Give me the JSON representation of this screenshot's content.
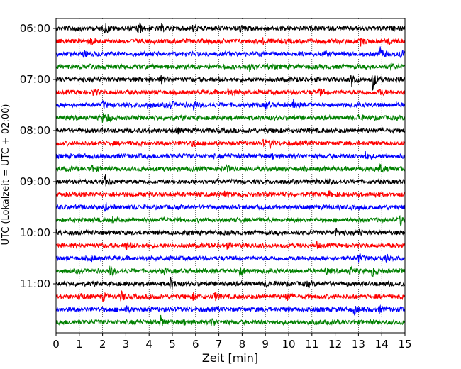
{
  "chart_data": {
    "type": "line",
    "title": "",
    "xlabel": "Zeit  [min]",
    "ylabel": "UTC (Lokalzeit = UTC + 02:00)",
    "xlim": [
      0,
      15
    ],
    "x_ticks": [
      "0",
      "1",
      "2",
      "3",
      "4",
      "5",
      "6",
      "7",
      "8",
      "9",
      "10",
      "11",
      "12",
      "13",
      "14",
      "15"
    ],
    "y_ticks": [
      "06:00",
      "07:00",
      "08:00",
      "09:00",
      "10:00",
      "11:00"
    ],
    "grid": "vertical dotted",
    "colors": [
      "#000000",
      "#ff0000",
      "#0000ff",
      "#008000"
    ],
    "traces": [
      {
        "start": "06:00",
        "color": "#000000",
        "events": [
          [
            0.8,
            0.5
          ],
          [
            2.1,
            0.9
          ],
          [
            3.5,
            1.4
          ],
          [
            4.5,
            0.5
          ],
          [
            5.9,
            0.6
          ],
          [
            7.9,
            0.5
          ]
        ]
      },
      {
        "start": "06:15",
        "color": "#ff0000",
        "events": [
          [
            1.5,
            0.5
          ],
          [
            8.9,
            0.4
          ],
          [
            13.1,
            0.5
          ],
          [
            14.3,
            0.4
          ]
        ]
      },
      {
        "start": "06:30",
        "color": "#0000ff",
        "events": [
          [
            1.2,
            0.4
          ],
          [
            11.5,
            0.4
          ],
          [
            13.9,
            1.3
          ],
          [
            14.8,
            0.6
          ]
        ]
      },
      {
        "start": "06:45",
        "color": "#008000",
        "events": [
          [
            1.5,
            0.5
          ],
          [
            8.3,
            0.6
          ],
          [
            9.0,
            0.4
          ],
          [
            14.4,
            0.4
          ]
        ]
      },
      {
        "start": "07:00",
        "color": "#000000",
        "events": [
          [
            4.5,
            0.6
          ],
          [
            12.7,
            1.0
          ],
          [
            13.6,
            1.6
          ],
          [
            14.7,
            0.5
          ]
        ]
      },
      {
        "start": "07:15",
        "color": "#ff0000",
        "events": [
          [
            1.6,
            0.6
          ],
          [
            7.4,
            0.6
          ],
          [
            11.3,
            0.5
          ],
          [
            13.9,
            0.5
          ]
        ]
      },
      {
        "start": "07:30",
        "color": "#0000ff",
        "events": [
          [
            2.0,
            0.5
          ],
          [
            3.9,
            0.5
          ],
          [
            4.9,
            0.6
          ],
          [
            5.9,
            0.6
          ],
          [
            9.0,
            0.5
          ],
          [
            10.2,
            0.5
          ]
        ]
      },
      {
        "start": "07:45",
        "color": "#008000",
        "events": [
          [
            2.0,
            0.6
          ],
          [
            2.2,
            0.5
          ],
          [
            13.0,
            0.4
          ]
        ]
      },
      {
        "start": "08:00",
        "color": "#000000",
        "events": [
          [
            5.2,
            0.4
          ],
          [
            9.4,
            0.3
          ]
        ]
      },
      {
        "start": "08:15",
        "color": "#ff0000",
        "events": [
          [
            5.9,
            0.5
          ],
          [
            8.9,
            0.4
          ],
          [
            9.2,
            0.6
          ]
        ]
      },
      {
        "start": "08:30",
        "color": "#0000ff",
        "events": [
          [
            9.3,
            0.4
          ],
          [
            13.3,
            0.5
          ]
        ]
      },
      {
        "start": "08:45",
        "color": "#008000",
        "events": [
          [
            1.5,
            0.6
          ],
          [
            7.3,
            0.5
          ],
          [
            13.9,
            0.8
          ]
        ]
      },
      {
        "start": "09:00",
        "color": "#000000",
        "events": [
          [
            2.1,
            1.0
          ],
          [
            11.6,
            0.4
          ]
        ]
      },
      {
        "start": "09:15",
        "color": "#ff0000",
        "events": [
          [
            7.2,
            0.4
          ],
          [
            11.7,
            0.4
          ],
          [
            13.7,
            0.4
          ]
        ]
      },
      {
        "start": "09:30",
        "color": "#0000ff",
        "events": [
          [
            2.1,
            0.4
          ]
        ]
      },
      {
        "start": "09:45",
        "color": "#008000",
        "events": [
          [
            2.4,
            0.4
          ],
          [
            14.8,
            0.9
          ]
        ]
      },
      {
        "start": "10:00",
        "color": "#000000",
        "events": [
          [
            12.0,
            0.6
          ],
          [
            13.0,
            0.4
          ]
        ]
      },
      {
        "start": "10:15",
        "color": "#ff0000",
        "events": [
          [
            3.0,
            0.6
          ],
          [
            7.3,
            0.4
          ],
          [
            11.2,
            0.4
          ]
        ]
      },
      {
        "start": "10:30",
        "color": "#0000ff",
        "events": [
          [
            1.5,
            0.4
          ],
          [
            13.0,
            0.7
          ],
          [
            14.2,
            0.4
          ]
        ]
      },
      {
        "start": "10:45",
        "color": "#008000",
        "events": [
          [
            2.3,
            0.9
          ],
          [
            4.6,
            0.5
          ],
          [
            7.9,
            1.0
          ],
          [
            11.6,
            0.5
          ],
          [
            12.6,
            0.7
          ],
          [
            13.6,
            0.9
          ]
        ]
      },
      {
        "start": "11:00",
        "color": "#000000",
        "events": [
          [
            4.9,
            1.0
          ],
          [
            9.0,
            0.5
          ],
          [
            10.8,
            0.5
          ]
        ]
      },
      {
        "start": "11:15",
        "color": "#ff0000",
        "events": [
          [
            1.0,
            0.6
          ],
          [
            2.0,
            0.6
          ],
          [
            2.8,
            0.8
          ],
          [
            4.1,
            0.5
          ],
          [
            5.9,
            0.5
          ],
          [
            6.8,
            0.7
          ],
          [
            9.9,
            0.6
          ]
        ]
      },
      {
        "start": "11:30",
        "color": "#0000ff",
        "events": [
          [
            3.0,
            0.4
          ],
          [
            12.8,
            0.6
          ],
          [
            13.9,
            0.4
          ]
        ]
      },
      {
        "start": "11:45",
        "color": "#008000",
        "events": [
          [
            4.5,
            0.8
          ],
          [
            5.5,
            0.4
          ],
          [
            6.7,
            0.7
          ]
        ]
      }
    ]
  }
}
